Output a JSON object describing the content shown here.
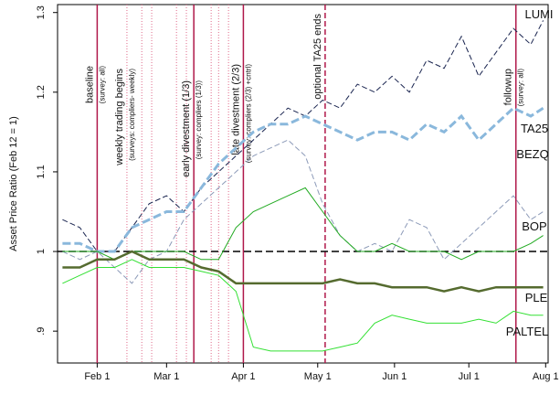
{
  "chart_data": {
    "type": "line",
    "y_label": "Asset Price Ratio (Feb 12 = 1)",
    "x": [
      18,
      25,
      32,
      39,
      46,
      53,
      60,
      67,
      74,
      81,
      88,
      95,
      102,
      109,
      116,
      123,
      130,
      137,
      144,
      151,
      158,
      165,
      172,
      179,
      186,
      193,
      200,
      207,
      212
    ],
    "xlim": [
      16,
      214
    ],
    "xticks": [
      {
        "value": 32,
        "label": "Feb 1"
      },
      {
        "value": 60,
        "label": "Mar 1"
      },
      {
        "value": 91,
        "label": "Apr 1"
      },
      {
        "value": 121,
        "label": "May 1"
      },
      {
        "value": 152,
        "label": "Jun 1"
      },
      {
        "value": 182,
        "label": "Jul 1"
      },
      {
        "value": 213,
        "label": "Aug 1"
      }
    ],
    "ylim": [
      0.86,
      1.31
    ],
    "yticks": [
      {
        "value": 0.9,
        "label": ".9"
      },
      1,
      1.1,
      1.2,
      1.3
    ],
    "reference_line": 1,
    "event_color": "#b0184a",
    "trading_color": "#e06a8a",
    "events": [
      {
        "x": 32,
        "label": "baseline",
        "sub": "(survey: all)",
        "style": "solid"
      },
      {
        "x": 44,
        "label": "weekly trading begins",
        "sub": "(surveys: compliers- weekly)",
        "style": "dotted"
      },
      {
        "x": 71,
        "label": "early divestment (1/3)",
        "sub": "(survey: compliers (1/3))",
        "style": "solid"
      },
      {
        "x": 91,
        "label": "late divestment (2/3)",
        "sub": "(survey: compliers (2/3) +cntrl)",
        "style": "solid"
      },
      {
        "x": 124,
        "label": "optional TA25 ends",
        "style": "dashed"
      },
      {
        "x": 201,
        "label": "followup",
        "sub": "(survey: all)",
        "style": "solid"
      }
    ],
    "trading_days": [
      50,
      54,
      64,
      68,
      78,
      81,
      85
    ],
    "series": [
      {
        "name": "LUMI",
        "color": "#1a2550",
        "dash": true,
        "width": 1,
        "values": [
          1.04,
          1.03,
          1.0,
          1.0,
          1.03,
          1.06,
          1.07,
          1.05,
          1.08,
          1.1,
          1.12,
          1.14,
          1.16,
          1.18,
          1.17,
          1.19,
          1.18,
          1.21,
          1.2,
          1.22,
          1.2,
          1.24,
          1.23,
          1.27,
          1.22,
          1.25,
          1.28,
          1.26,
          1.29
        ]
      },
      {
        "name": "TA25",
        "color": "#8ab8dc",
        "dash": true,
        "width": 3,
        "values": [
          1.01,
          1.01,
          1.0,
          1.0,
          1.03,
          1.04,
          1.05,
          1.05,
          1.08,
          1.11,
          1.13,
          1.15,
          1.16,
          1.16,
          1.17,
          1.16,
          1.15,
          1.14,
          1.15,
          1.15,
          1.14,
          1.16,
          1.15,
          1.17,
          1.14,
          1.16,
          1.18,
          1.17,
          1.18
        ]
      },
      {
        "name": "BEZQ",
        "color": "#8c9ab8",
        "dash": true,
        "width": 1,
        "values": [
          1.0,
          0.99,
          1.0,
          0.98,
          0.96,
          0.99,
          1.0,
          1.04,
          1.06,
          1.08,
          1.1,
          1.12,
          1.13,
          1.14,
          1.12,
          1.06,
          1.02,
          1.0,
          1.01,
          1.0,
          1.04,
          1.03,
          0.99,
          1.01,
          1.03,
          1.05,
          1.07,
          1.04,
          1.05
        ]
      },
      {
        "name": "BOP",
        "color": "#22aa22",
        "dash": false,
        "width": 1,
        "values": [
          1.0,
          1.0,
          1.0,
          0.99,
          1.0,
          1.0,
          1.0,
          1.0,
          0.99,
          0.99,
          1.03,
          1.05,
          1.06,
          1.07,
          1.08,
          1.05,
          1.02,
          1.0,
          1.0,
          1.01,
          1.0,
          1.0,
          1.0,
          0.99,
          1.0,
          1.0,
          1.0,
          1.01,
          1.02
        ]
      },
      {
        "name": "PLE",
        "color": "#556b2f",
        "dash": false,
        "width": 2.5,
        "values": [
          0.98,
          0.98,
          0.99,
          0.99,
          1.0,
          0.99,
          0.99,
          0.99,
          0.98,
          0.975,
          0.96,
          0.96,
          0.96,
          0.96,
          0.96,
          0.96,
          0.965,
          0.96,
          0.96,
          0.955,
          0.955,
          0.955,
          0.95,
          0.955,
          0.95,
          0.955,
          0.955,
          0.955,
          0.955
        ]
      },
      {
        "name": "PALTEL",
        "color": "#33e033",
        "dash": false,
        "width": 1,
        "values": [
          0.96,
          0.97,
          0.98,
          0.98,
          0.99,
          0.98,
          0.98,
          0.98,
          0.975,
          0.97,
          0.95,
          0.88,
          0.875,
          0.875,
          0.875,
          0.875,
          0.88,
          0.885,
          0.91,
          0.92,
          0.915,
          0.91,
          0.91,
          0.91,
          0.915,
          0.91,
          0.925,
          0.92,
          0.92
        ]
      }
    ]
  }
}
